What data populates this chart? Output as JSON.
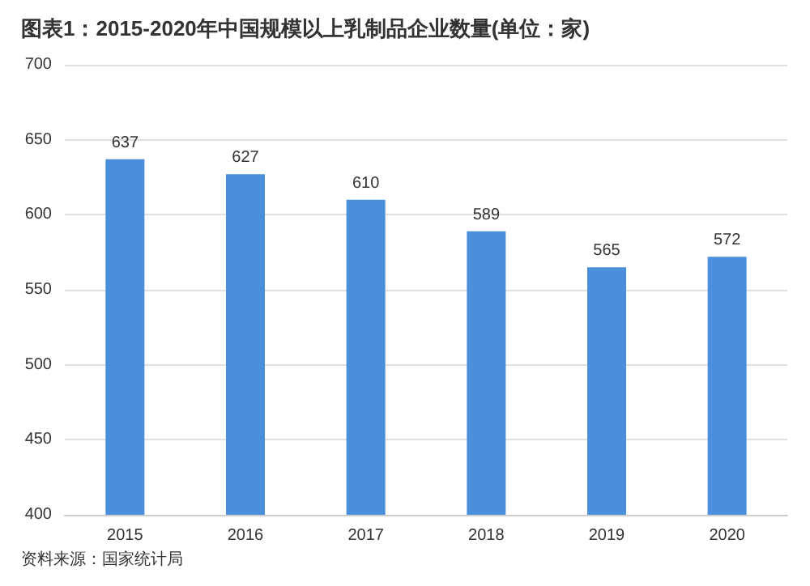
{
  "chart_data": {
    "type": "bar",
    "title": "图表1：2015-2020年中国规模以上乳制品企业数量(单位：家)",
    "categories": [
      "2015",
      "2016",
      "2017",
      "2018",
      "2019",
      "2020"
    ],
    "values": [
      637,
      627,
      610,
      589,
      565,
      572
    ],
    "color": "#4a8fdc",
    "ylim": [
      400,
      700
    ],
    "yticks": [
      400,
      450,
      500,
      550,
      600,
      650,
      700
    ],
    "grid": "y",
    "data_labels": true,
    "annotations": [
      "资料来源：国家统计局"
    ]
  }
}
